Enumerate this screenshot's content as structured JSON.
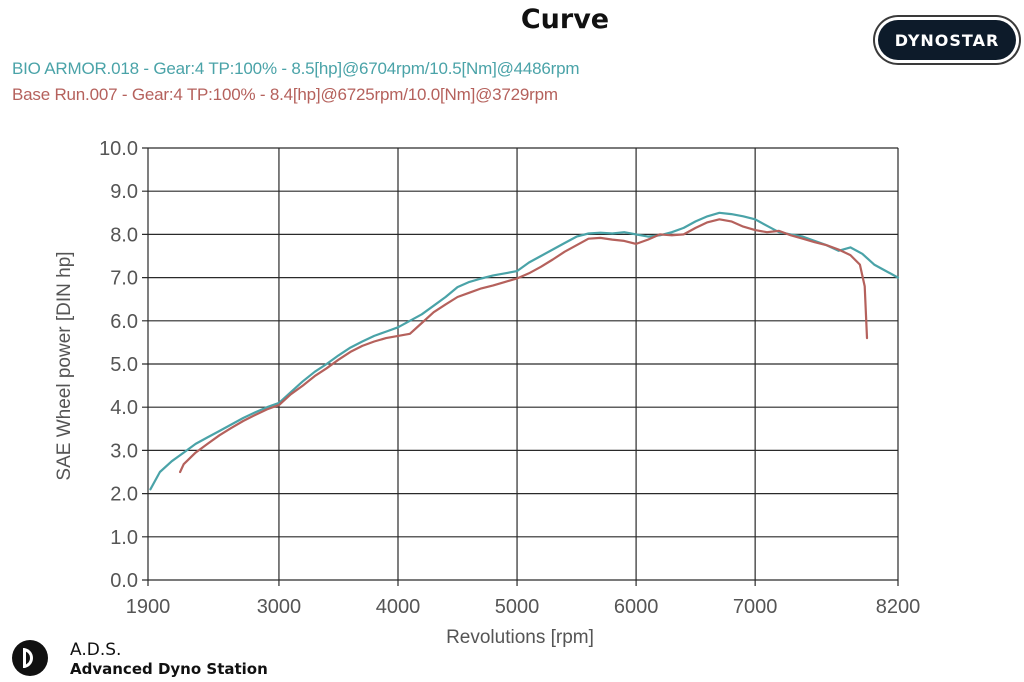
{
  "header": {
    "title": "Curve",
    "brand_badge": "DYNOSTAR"
  },
  "footer": {
    "ads_title": "A.D.S.",
    "ads_subtitle": "Advanced Dyno Station"
  },
  "colors": {
    "series_1": "#4aa3a8",
    "series_2": "#b5615c",
    "grid_major": "#2a2a2a",
    "grid_minor": "#c8c8c8",
    "axis": "#555555"
  },
  "chart_data": {
    "type": "line",
    "title": "Curve",
    "xlabel": "Revolutions [rpm]",
    "ylabel": "SAE Wheel power [DIN hp]",
    "xlim": [
      1900,
      8200
    ],
    "ylim": [
      0,
      10
    ],
    "x_ticks": [
      1900,
      3000,
      4000,
      5000,
      6000,
      7000,
      8200
    ],
    "y_ticks": [
      "0.0",
      "1.0",
      "2.0",
      "3.0",
      "4.0",
      "5.0",
      "6.0",
      "7.0",
      "8.0",
      "9.0",
      "10.0"
    ],
    "grid": true,
    "legend_position": "top-left",
    "series": [
      {
        "name": "BIO ARMOR.018 - Gear:4 TP:100%  - 8.5[hp]@6704rpm/10.5[Nm]@4486rpm",
        "color_key": "series_1",
        "x": [
          1920,
          2000,
          2100,
          2200,
          2300,
          2400,
          2500,
          2600,
          2700,
          2800,
          2900,
          3000,
          3100,
          3200,
          3300,
          3400,
          3500,
          3600,
          3700,
          3800,
          3900,
          4000,
          4100,
          4200,
          4300,
          4400,
          4500,
          4600,
          4700,
          4800,
          4900,
          5000,
          5100,
          5200,
          5300,
          5400,
          5500,
          5600,
          5700,
          5800,
          5900,
          6000,
          6100,
          6200,
          6300,
          6400,
          6500,
          6600,
          6700,
          6800,
          6900,
          7000,
          7100,
          7200,
          7300,
          7400,
          7500,
          7600,
          7700,
          7800,
          7900,
          8000,
          8100,
          8200
        ],
        "values": [
          2.1,
          2.5,
          2.75,
          2.95,
          3.15,
          3.3,
          3.45,
          3.6,
          3.75,
          3.88,
          4.0,
          4.1,
          4.35,
          4.6,
          4.82,
          5.0,
          5.2,
          5.38,
          5.52,
          5.65,
          5.75,
          5.85,
          6.0,
          6.15,
          6.35,
          6.55,
          6.78,
          6.9,
          6.98,
          7.05,
          7.1,
          7.15,
          7.35,
          7.5,
          7.65,
          7.8,
          7.95,
          8.02,
          8.04,
          8.02,
          8.05,
          8.0,
          7.95,
          7.98,
          8.05,
          8.15,
          8.3,
          8.42,
          8.5,
          8.47,
          8.42,
          8.35,
          8.2,
          8.05,
          8.0,
          7.95,
          7.85,
          7.75,
          7.62,
          7.7,
          7.55,
          7.3,
          7.15,
          7.0
        ]
      },
      {
        "name": "Base Run.007 - Gear:4 TP:100%  - 8.4[hp]@6725rpm/10.0[Nm]@3729rpm",
        "color_key": "series_2",
        "x": [
          2170,
          2200,
          2300,
          2400,
          2500,
          2600,
          2700,
          2800,
          2900,
          3000,
          3100,
          3200,
          3300,
          3400,
          3500,
          3600,
          3700,
          3800,
          3900,
          4000,
          4100,
          4200,
          4300,
          4400,
          4500,
          4600,
          4700,
          4800,
          4900,
          5000,
          5100,
          5200,
          5300,
          5400,
          5500,
          5600,
          5700,
          5800,
          5900,
          6000,
          6100,
          6200,
          6300,
          6400,
          6500,
          6600,
          6700,
          6800,
          6900,
          7000,
          7100,
          7200,
          7300,
          7400,
          7500,
          7600,
          7700,
          7800,
          7880,
          7920,
          7940
        ],
        "values": [
          2.5,
          2.68,
          2.95,
          3.15,
          3.35,
          3.52,
          3.68,
          3.82,
          3.95,
          4.05,
          4.3,
          4.5,
          4.72,
          4.9,
          5.1,
          5.28,
          5.42,
          5.52,
          5.6,
          5.65,
          5.7,
          5.95,
          6.2,
          6.38,
          6.55,
          6.65,
          6.75,
          6.82,
          6.9,
          6.98,
          7.1,
          7.25,
          7.42,
          7.6,
          7.75,
          7.9,
          7.92,
          7.88,
          7.85,
          7.78,
          7.88,
          8.0,
          7.98,
          8.0,
          8.15,
          8.28,
          8.35,
          8.3,
          8.18,
          8.1,
          8.05,
          8.08,
          7.98,
          7.9,
          7.82,
          7.75,
          7.65,
          7.52,
          7.3,
          6.8,
          5.6
        ]
      }
    ]
  }
}
